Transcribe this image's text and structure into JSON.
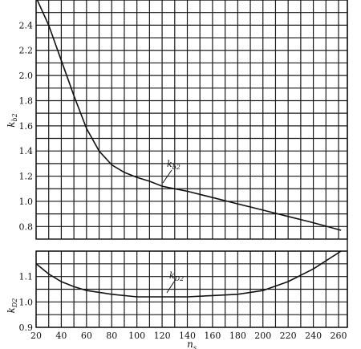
{
  "chart_data": [
    {
      "type": "line",
      "ylabel": "k",
      "ylabel_sub": "b2",
      "xlim": [
        20,
        260
      ],
      "ylim": [
        0.7,
        2.6
      ],
      "yticks": [
        "2.4",
        "2.2",
        "2.0",
        "1.8",
        "1.6",
        "1.4",
        "1.2",
        "1.0",
        "0.8"
      ],
      "ytick_values": [
        2.4,
        2.2,
        2.0,
        1.8,
        1.6,
        1.4,
        1.2,
        1.0,
        0.8
      ],
      "grid": true,
      "series": [
        {
          "name": "k",
          "name_sub": "b2",
          "x": [
            20,
            30,
            40,
            50,
            60,
            70,
            80,
            90,
            100,
            110,
            120,
            130,
            140,
            160,
            180,
            200,
            220,
            240,
            262
          ],
          "y": [
            2.62,
            2.4,
            2.12,
            1.84,
            1.58,
            1.4,
            1.29,
            1.23,
            1.19,
            1.16,
            1.12,
            1.1,
            1.08,
            1.03,
            0.98,
            0.93,
            0.88,
            0.83,
            0.77
          ]
        }
      ]
    },
    {
      "type": "line",
      "xlabel": "n",
      "xlabel_sub": "s",
      "ylabel": "k",
      "ylabel_sub": "D2",
      "xlim": [
        20,
        260
      ],
      "ylim": [
        0.9,
        1.2
      ],
      "xticks": [
        "20",
        "40",
        "60",
        "80",
        "100",
        "120",
        "140",
        "160",
        "180",
        "200",
        "220",
        "240",
        "260"
      ],
      "xtick_values": [
        20,
        40,
        60,
        80,
        100,
        120,
        140,
        160,
        180,
        200,
        220,
        240,
        260
      ],
      "yticks": [
        "1.1",
        "1.0",
        "0.9"
      ],
      "ytick_values": [
        1.1,
        1.0,
        0.9
      ],
      "grid": true,
      "series": [
        {
          "name": "k",
          "name_sub": "D2",
          "x": [
            20,
            30,
            40,
            50,
            60,
            80,
            100,
            120,
            140,
            160,
            180,
            200,
            220,
            240,
            262
          ],
          "y": [
            1.15,
            1.11,
            1.08,
            1.06,
            1.045,
            1.03,
            1.02,
            1.02,
            1.02,
            1.025,
            1.03,
            1.045,
            1.08,
            1.13,
            1.2
          ]
        }
      ]
    }
  ]
}
